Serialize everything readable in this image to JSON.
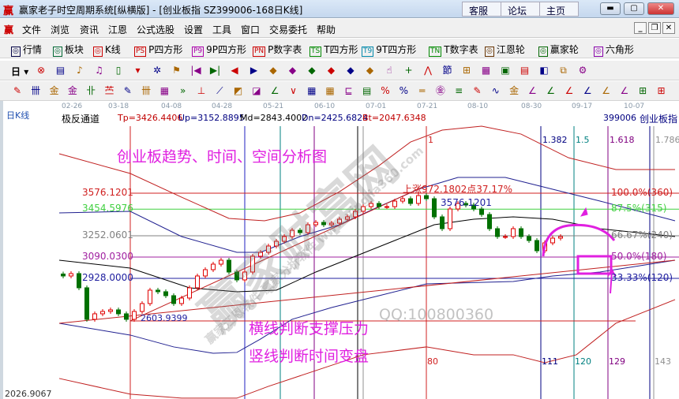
{
  "titlebar": {
    "title": "赢家老子时空周期系统[纵横版] - [创业板指  SZ399006-168日K线]",
    "links": [
      "客服",
      "论坛",
      "主页"
    ],
    "controls": [
      "minimize",
      "maximize",
      "close"
    ]
  },
  "menu": [
    "文件",
    "浏览",
    "资讯",
    "江恩",
    "公式选股",
    "设置",
    "工具",
    "窗口",
    "交易委托",
    "帮助"
  ],
  "toolbar1": [
    {
      "icon": "quote-table-icon",
      "label": "行情"
    },
    {
      "icon": "sector-icon",
      "label": "板块"
    },
    {
      "icon": "kline-icon",
      "label": "K线"
    },
    {
      "icon": "PS",
      "label": "P四方形"
    },
    {
      "icon": "P9",
      "label": "9P四方形"
    },
    {
      "icon": "PN",
      "label": "P数字表"
    },
    {
      "icon": "TS",
      "label": "T四方形"
    },
    {
      "icon": "T9",
      "label": "9T四方形"
    },
    {
      "icon": "TN",
      "label": "T数字表"
    },
    {
      "icon": "gann-wheel-icon",
      "label": "江恩轮"
    },
    {
      "icon": "big-wheel-icon",
      "label": "赢家轮"
    },
    {
      "icon": "hexagon-icon",
      "label": "六角形"
    }
  ],
  "toolbar2_period": "日",
  "chart_data": {
    "type": "candlestick",
    "panel_label": "日K线",
    "indicator": {
      "name": "极反通道",
      "values": [
        "Tp=3426.4406",
        "Up=3152.8895",
        "Md=2843.4002",
        "Dn=2425.6824",
        "Bt=2047.6348"
      ]
    },
    "symbol": "399006",
    "symbol_name": "创业板指",
    "x_ticks": [
      "02-26",
      "03-18",
      "04-08",
      "04-28",
      "05-21",
      "06-10",
      "07-01",
      "07-21",
      "08-10",
      "08-30",
      "09-17",
      "10-07"
    ],
    "y_min_label": "2026.9067",
    "closes": [
      2946,
      2964,
      2856,
      2616,
      2658,
      2676,
      2688,
      2658,
      2616,
      2676,
      2736,
      2838,
      2826,
      2796,
      2736,
      2778,
      2856,
      2946,
      2994,
      3036,
      3066,
      2976,
      2916,
      2976,
      3096,
      3126,
      3174,
      3210,
      3246,
      3294,
      3276,
      3336,
      3354,
      3336,
      3348,
      3378,
      3396,
      3438,
      3474,
      3498,
      3474,
      3474,
      3516,
      3534,
      3498,
      3558,
      3534,
      3396,
      3306,
      3456,
      3498,
      3486,
      3456,
      3414,
      3306,
      3246,
      3246,
      3306,
      3246,
      3216,
      3138,
      3198,
      3234,
      3246
    ],
    "colors": {
      "up": "#e00000",
      "down": "#007000"
    },
    "levels": [
      {
        "price": "3576.1201",
        "value": 3576.1201,
        "pct": "100.0%(360)",
        "color": "#d02020"
      },
      {
        "price": "3454.5976",
        "value": 3454.5976,
        "pct": "87.5%(315)",
        "color": "#40d040"
      },
      {
        "price": "3252.0601",
        "value": 3252.0601,
        "pct": "66.67%(240)",
        "color": "#808080"
      },
      {
        "price": "3090.0300",
        "value": 3090.03,
        "pct": "50.0%(180)",
        "color": "#a020a0"
      },
      {
        "price": "2928.0000",
        "value": 2928,
        "pct": "33.33%(120)",
        "color": "#2020a0"
      }
    ],
    "low_label": "2603.9399",
    "low_value": 2603.9399,
    "high_label": "3576.1201",
    "rise_label": "上涨972.1802点37.17%",
    "time_lines": [
      {
        "bar": 8.5,
        "color": "#d02020"
      },
      {
        "bar": 23,
        "color": "#2020c0"
      },
      {
        "bar": 27.5,
        "color": "#008080"
      },
      {
        "bar": 31.8,
        "color": "#800080"
      },
      {
        "bar": 37.3,
        "color": "#000000"
      },
      {
        "bar": 38,
        "color": "#909090"
      },
      {
        "bar": 46,
        "color": "#d02020",
        "top": "1",
        "bottom": "80"
      },
      {
        "bar": 60.5,
        "color": "#000080",
        "top": "1.382",
        "bottom": "111"
      },
      {
        "bar": 64.7,
        "color": "#008080",
        "top": "1.5",
        "bottom": "120"
      },
      {
        "bar": 69,
        "color": "#800080",
        "top": "1.618",
        "bottom": "129"
      },
      {
        "bar": 74.3,
        "color": "#000080"
      },
      {
        "bar": 74.8,
        "color": "#909090",
        "top": "1.786",
        "bottom": "143"
      }
    ],
    "bands": [
      {
        "color": "#c02020",
        "points": [
          [
            -0.5,
            3876
          ],
          [
            8.5,
            3726
          ],
          [
            15,
            3546
          ],
          [
            21,
            3384
          ],
          [
            25.5,
            3366
          ],
          [
            30,
            3426
          ],
          [
            35,
            3588
          ],
          [
            40,
            3786
          ],
          [
            44,
            3966
          ],
          [
            48,
            4056
          ],
          [
            53,
            4086
          ],
          [
            58,
            4026
          ],
          [
            64,
            3846
          ],
          [
            70,
            3756
          ],
          [
            77.5,
            3756
          ]
        ]
      },
      {
        "color": "#202090",
        "points": [
          [
            -0.5,
            3426
          ],
          [
            8.5,
            3438
          ],
          [
            15,
            3246
          ],
          [
            22,
            3126
          ],
          [
            25,
            3126
          ],
          [
            30,
            3246
          ],
          [
            35,
            3336
          ],
          [
            40,
            3474
          ],
          [
            45,
            3606
          ],
          [
            50,
            3696
          ],
          [
            56,
            3696
          ],
          [
            62,
            3606
          ],
          [
            68,
            3516
          ],
          [
            77.5,
            3366
          ]
        ]
      },
      {
        "color": "#000000",
        "points": [
          [
            -0.5,
            3066
          ],
          [
            8.5,
            3006
          ],
          [
            16,
            2856
          ],
          [
            22,
            2826
          ],
          [
            27,
            2838
          ],
          [
            32,
            2976
          ],
          [
            37,
            3096
          ],
          [
            42,
            3216
          ],
          [
            47,
            3336
          ],
          [
            52,
            3378
          ],
          [
            57,
            3396
          ],
          [
            62,
            3378
          ],
          [
            68,
            3306
          ],
          [
            77.5,
            3246
          ]
        ]
      },
      {
        "color": "#202090",
        "points": [
          [
            -0.5,
            2586
          ],
          [
            8.5,
            2496
          ],
          [
            14,
            2406
          ],
          [
            19,
            2358
          ],
          [
            22,
            2364
          ],
          [
            25,
            2466
          ],
          [
            29,
            2616
          ],
          [
            34,
            2706
          ],
          [
            40,
            2796
          ],
          [
            46,
            2886
          ],
          [
            57,
            2904
          ],
          [
            62,
            2946
          ],
          [
            68,
            2976
          ],
          [
            77.5,
            3066
          ]
        ]
      },
      {
        "color": "#c02020",
        "points": [
          [
            -0.5,
            2166
          ],
          [
            8.5,
            2046
          ],
          [
            15,
            2016
          ],
          [
            22,
            2016
          ],
          [
            26,
            2106
          ],
          [
            32,
            2226
          ],
          [
            38,
            2346
          ],
          [
            46,
            2406
          ],
          [
            52,
            2346
          ],
          [
            57,
            2346
          ],
          [
            61,
            2286
          ],
          [
            65,
            2346
          ],
          [
            70,
            2586
          ],
          [
            77.5,
            2766
          ]
        ]
      },
      {
        "color": "#c02020",
        "points": [
          [
            8.5,
            2604
          ],
          [
            46,
            3636
          ]
        ]
      },
      {
        "color": "#c02020",
        "points": [
          [
            -0.5,
            2586
          ],
          [
            77.5,
            3066
          ]
        ]
      }
    ],
    "annotations": {
      "title": "创业板趋势、时间、空间分析图",
      "line1": "横线判断支撑压力",
      "line2": "竖线判断时间变盘",
      "color": "#e020e0"
    }
  },
  "watermark": {
    "text": "赢家财富网",
    "sub": "赢家江恩软件  赢家分析软件  www.yingjia360.com",
    "qq": "QQ:100800360"
  }
}
